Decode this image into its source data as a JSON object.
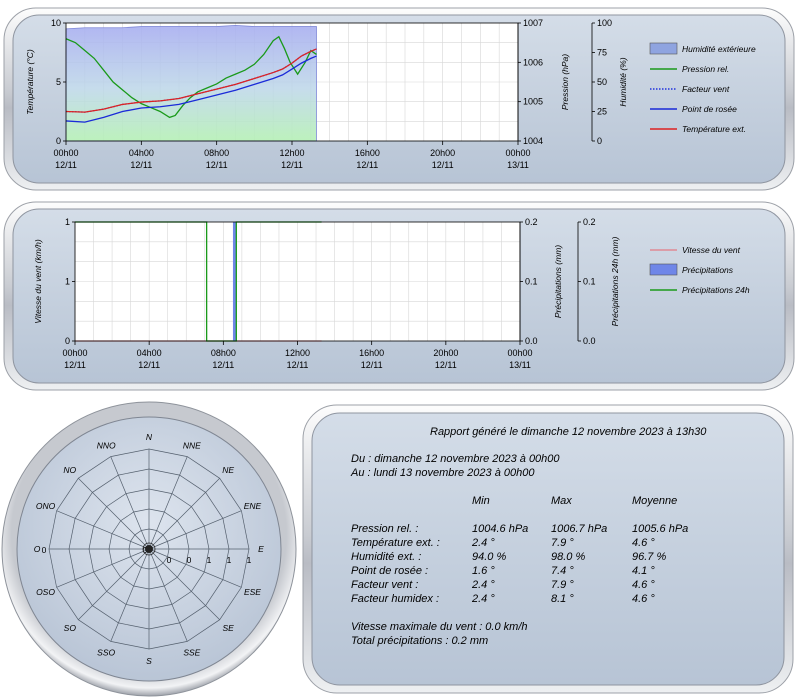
{
  "chart_data": [
    {
      "type": "line",
      "x_ticks": [
        {
          "t": "00h00",
          "d": "12/11"
        },
        {
          "t": "04h00",
          "d": "12/11"
        },
        {
          "t": "08h00",
          "d": "12/11"
        },
        {
          "t": "12h00",
          "d": "12/11"
        },
        {
          "t": "16h00",
          "d": "12/11"
        },
        {
          "t": "20h00",
          "d": "12/11"
        },
        {
          "t": "00h00",
          "d": "13/11"
        }
      ],
      "xlim_hours": [
        0,
        24
      ],
      "axes": [
        {
          "label": "Température (°C)",
          "range": [
            0,
            10
          ],
          "ticks": [
            "0",
            "5",
            "10"
          ],
          "side": "left"
        },
        {
          "label": "Pression (hPa)",
          "range": [
            1004,
            1007
          ],
          "ticks": [
            "1004",
            "1005",
            "1006",
            "1007"
          ],
          "side": "right"
        },
        {
          "label": "Humidité (%)",
          "range": [
            0,
            100
          ],
          "ticks": [
            "0",
            "25",
            "50",
            "75",
            "100"
          ],
          "side": "right"
        }
      ],
      "grid": true,
      "legend_placement": "right",
      "series": [
        {
          "name": "Humidité extérieure",
          "kind": "area",
          "axis": 2,
          "color": "#9aa8e8",
          "x": [
            0,
            1,
            2,
            3,
            4,
            5,
            6,
            7,
            8,
            9,
            10,
            11,
            12,
            13.3
          ],
          "y": [
            95,
            96,
            96,
            96,
            97,
            97,
            97,
            97,
            97,
            98,
            97,
            97,
            97,
            97
          ]
        },
        {
          "name": "Pression rel.",
          "kind": "line",
          "axis": 1,
          "color": "#1a9a1a",
          "x": [
            0,
            0.5,
            1,
            1.5,
            2,
            2.5,
            3,
            3.5,
            4,
            4.5,
            5,
            5.5,
            5.8,
            6.2,
            6.6,
            7,
            7.5,
            8,
            8.5,
            9,
            9.5,
            10,
            10.5,
            11,
            11.3,
            11.6,
            11.9,
            12.3,
            12.7,
            13,
            13.3
          ],
          "y": [
            1006.6,
            1006.5,
            1006.3,
            1006.1,
            1005.8,
            1005.5,
            1005.3,
            1005.1,
            1004.95,
            1004.85,
            1004.75,
            1004.6,
            1004.65,
            1004.9,
            1005.1,
            1005.25,
            1005.35,
            1005.45,
            1005.6,
            1005.7,
            1005.8,
            1005.95,
            1006.2,
            1006.55,
            1006.65,
            1006.35,
            1006.0,
            1005.7,
            1006.0,
            1006.3,
            1006.2
          ]
        },
        {
          "name": "Facteur vent",
          "kind": "dotted",
          "axis": 0,
          "color": "#2233dd",
          "x": [
            0,
            1,
            2,
            3,
            4,
            5,
            6,
            7,
            8,
            9,
            10,
            11,
            11.5,
            12,
            12.5,
            13,
            13.3
          ],
          "y": [
            2.5,
            2.45,
            2.7,
            3.1,
            3.3,
            3.4,
            3.6,
            4.0,
            4.4,
            4.8,
            5.3,
            5.8,
            6.1,
            6.6,
            7.2,
            7.6,
            7.8
          ]
        },
        {
          "name": "Point de rosée",
          "kind": "line",
          "axis": 0,
          "color": "#1a2ad8",
          "x": [
            0,
            1,
            2,
            3,
            4,
            5,
            6,
            7,
            8,
            9,
            10,
            11,
            11.5,
            12,
            12.5,
            13,
            13.3
          ],
          "y": [
            1.7,
            1.6,
            2.0,
            2.5,
            2.8,
            2.9,
            3.1,
            3.5,
            3.9,
            4.3,
            4.8,
            5.3,
            5.6,
            6.1,
            6.6,
            7.0,
            7.2
          ]
        },
        {
          "name": "Température ext.",
          "kind": "line",
          "axis": 0,
          "color": "#dd2222",
          "x": [
            0,
            1,
            2,
            3,
            4,
            5,
            6,
            7,
            8,
            9,
            10,
            11,
            11.5,
            12,
            12.5,
            13,
            13.3
          ],
          "y": [
            2.5,
            2.45,
            2.7,
            3.1,
            3.3,
            3.4,
            3.6,
            4.0,
            4.4,
            4.8,
            5.3,
            5.8,
            6.1,
            6.6,
            7.2,
            7.6,
            7.8
          ]
        }
      ]
    },
    {
      "type": "line",
      "x_ticks": [
        {
          "t": "00h00",
          "d": "12/11"
        },
        {
          "t": "04h00",
          "d": "12/11"
        },
        {
          "t": "08h00",
          "d": "12/11"
        },
        {
          "t": "12h00",
          "d": "12/11"
        },
        {
          "t": "16h00",
          "d": "12/11"
        },
        {
          "t": "20h00",
          "d": "12/11"
        },
        {
          "t": "00h00",
          "d": "13/11"
        }
      ],
      "xlim_hours": [
        0,
        24
      ],
      "axes": [
        {
          "label": "Vitesse du vent (km/h)",
          "range": [
            0,
            1
          ],
          "ticks": [
            "0",
            "1",
            "1"
          ],
          "side": "left"
        },
        {
          "label": "Précipitations (mm)",
          "range": [
            0,
            0.2
          ],
          "ticks": [
            "0.0",
            "0.1",
            "0.2"
          ],
          "side": "right"
        },
        {
          "label": "Précipitations 24h (mm)",
          "range": [
            0,
            0.2
          ],
          "ticks": [
            "0.0",
            "0.1",
            "0.2"
          ],
          "side": "right"
        }
      ],
      "grid": true,
      "legend_placement": "right",
      "series": [
        {
          "name": "Vitesse du vent",
          "kind": "line",
          "axis": 0,
          "color": "#e08a94",
          "x": [
            0,
            13.3
          ],
          "y": [
            0,
            0
          ]
        },
        {
          "name": "Précipitations",
          "kind": "bar",
          "axis": 1,
          "color": "#6f86e8",
          "x": [
            8.6
          ],
          "y": [
            0.2
          ]
        },
        {
          "name": "Précipitations 24h",
          "kind": "step",
          "axis": 2,
          "color": "#1a9a1a",
          "x": [
            0,
            7.1,
            7.1,
            8.7,
            8.7,
            13.3
          ],
          "y": [
            0.2,
            0.2,
            0,
            0,
            0.2,
            0.2
          ]
        }
      ]
    },
    {
      "type": "radar",
      "directions": [
        "N",
        "NNE",
        "NE",
        "ENE",
        "E",
        "ESE",
        "SE",
        "SSE",
        "S",
        "SSO",
        "SO",
        "OSO",
        "O",
        "ONO",
        "NO",
        "NNO"
      ],
      "ring_labels_left": [
        "0",
        "0"
      ],
      "ring_labels_right": [
        "0",
        "0",
        "1",
        "1",
        "1"
      ],
      "values": [
        0,
        0,
        0,
        0,
        0,
        0,
        0,
        0,
        0,
        0,
        0,
        0,
        0,
        0,
        0,
        0
      ]
    }
  ],
  "report": {
    "title": "Rapport généré le dimanche 12 novembre 2023 à 13h30",
    "period_from": "Du : dimanche 12 novembre 2023 à 00h00",
    "period_to": "Au : lundi 13 novembre 2023 à 00h00",
    "columns": [
      "Min",
      "Max",
      "Moyenne"
    ],
    "rows": [
      {
        "label": "Pression rel. :",
        "min": "1004.6 hPa",
        "max": "1006.7 hPa",
        "avg": "1005.6 hPa"
      },
      {
        "label": "Température ext. :",
        "min": "2.4 °",
        "max": "7.9 °",
        "avg": "4.6 °"
      },
      {
        "label": "Humidité ext. :",
        "min": "94.0 %",
        "max": "98.0 %",
        "avg": "96.7 %"
      },
      {
        "label": "Point de rosée :",
        "min": "1.6 °",
        "max": "7.4 °",
        "avg": "4.1 °"
      },
      {
        "label": "Facteur vent :",
        "min": "2.4 °",
        "max": "7.9 °",
        "avg": "4.6 °"
      },
      {
        "label": "Facteur humidex :",
        "min": "2.4 °",
        "max": "8.1 °",
        "avg": "4.6 °"
      }
    ],
    "max_wind": "Vitesse maximale du vent : 0.0 km/h",
    "total_precip": "Total précipitations : 0.2 mm"
  }
}
